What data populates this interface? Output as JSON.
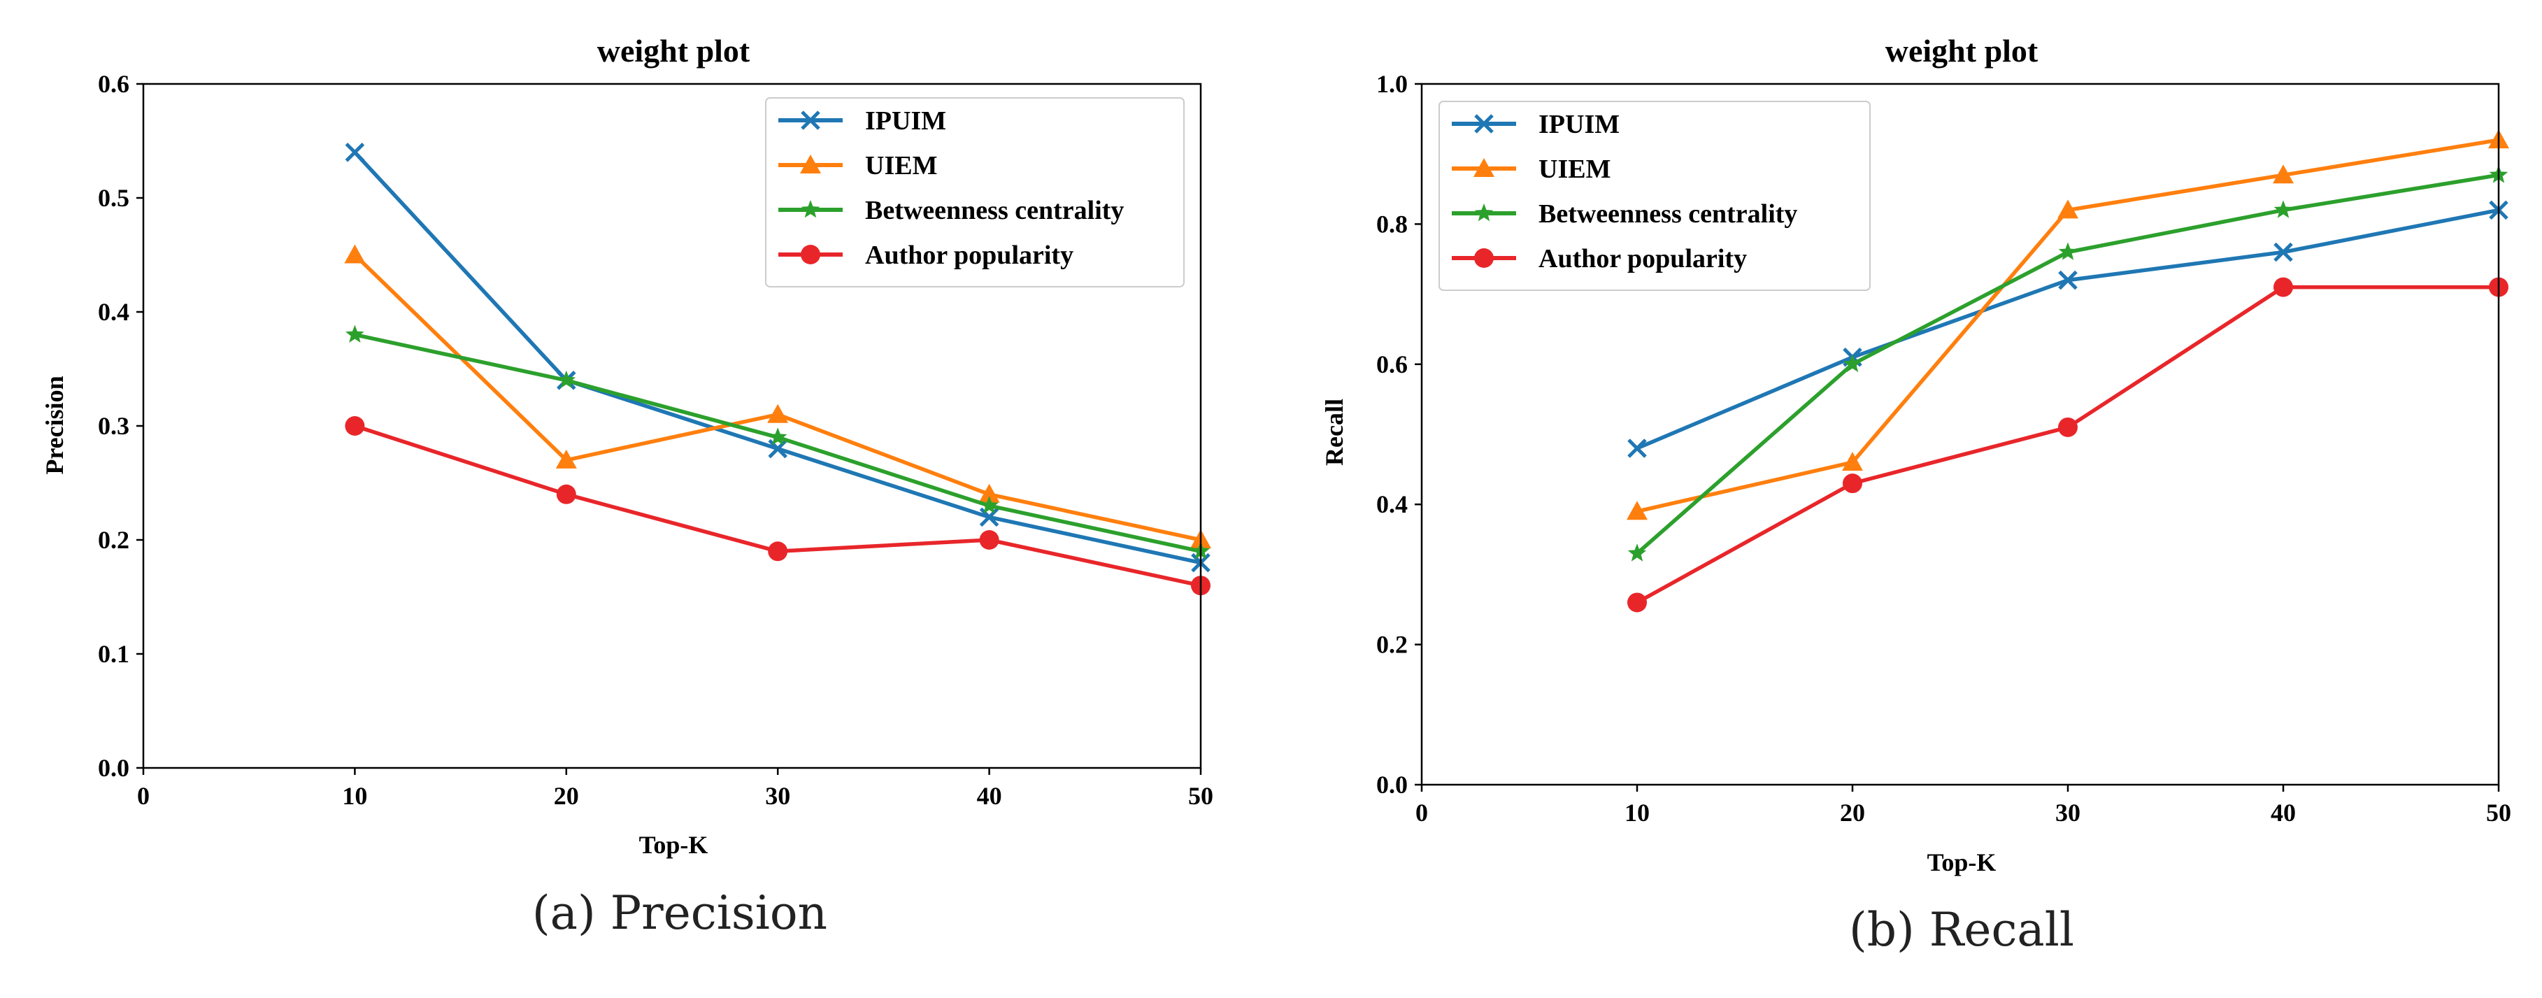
{
  "colors": {
    "IPUIM": "#1f77b4",
    "UIEM": "#ff7f0e",
    "Betweenness centrality": "#2ca02c",
    "Author popularity": "#e8262a"
  },
  "chart_data": [
    {
      "type": "line",
      "title": "weight plot",
      "xlabel": "Top-K",
      "ylabel": "Precision",
      "caption": "(a) Precision",
      "xlim": [
        0,
        50
      ],
      "ylim": [
        0,
        0.6
      ],
      "xticks": [
        0,
        10,
        20,
        30,
        40,
        50
      ],
      "xtick_labels": [
        "0",
        "10",
        "20",
        "30",
        "40",
        "50"
      ],
      "yticks": [
        0,
        0.1,
        0.2,
        0.3,
        0.4,
        0.5,
        0.6
      ],
      "ytick_labels": [
        "0.0",
        "0.1",
        "0.2",
        "0.3",
        "0.4",
        "0.5",
        "0.6"
      ],
      "legend_position": "top-right",
      "x": [
        10,
        20,
        30,
        40,
        50
      ],
      "series": [
        {
          "name": "IPUIM",
          "marker": "x",
          "values": [
            0.54,
            0.34,
            0.28,
            0.22,
            0.18
          ]
        },
        {
          "name": "UIEM",
          "marker": "triangle",
          "values": [
            0.45,
            0.27,
            0.31,
            0.24,
            0.2
          ]
        },
        {
          "name": "Betweenness centrality",
          "marker": "star",
          "values": [
            0.38,
            0.34,
            0.29,
            0.23,
            0.19
          ]
        },
        {
          "name": "Author popularity",
          "marker": "circle",
          "values": [
            0.3,
            0.24,
            0.19,
            0.2,
            0.16
          ]
        }
      ]
    },
    {
      "type": "line",
      "title": "weight plot",
      "xlabel": "Top-K",
      "ylabel": "Recall",
      "caption": "(b) Recall",
      "xlim": [
        0,
        50
      ],
      "ylim": [
        0,
        1.0
      ],
      "xticks": [
        0,
        10,
        20,
        30,
        40,
        50
      ],
      "xtick_labels": [
        "0",
        "10",
        "20",
        "30",
        "40",
        "50"
      ],
      "yticks": [
        0,
        0.2,
        0.4,
        0.6,
        0.8,
        1.0
      ],
      "ytick_labels": [
        "0.0",
        "0.2",
        "0.4",
        "0.6",
        "0.8",
        "1.0"
      ],
      "legend_position": "top-left",
      "x": [
        10,
        20,
        30,
        40,
        50
      ],
      "series": [
        {
          "name": "IPUIM",
          "marker": "x",
          "values": [
            0.48,
            0.61,
            0.72,
            0.76,
            0.82
          ]
        },
        {
          "name": "UIEM",
          "marker": "triangle",
          "values": [
            0.39,
            0.46,
            0.82,
            0.87,
            0.92
          ]
        },
        {
          "name": "Betweenness centrality",
          "marker": "star",
          "values": [
            0.33,
            0.6,
            0.76,
            0.82,
            0.87
          ]
        },
        {
          "name": "Author popularity",
          "marker": "circle",
          "values": [
            0.26,
            0.43,
            0.51,
            0.71,
            0.71
          ]
        }
      ]
    }
  ]
}
